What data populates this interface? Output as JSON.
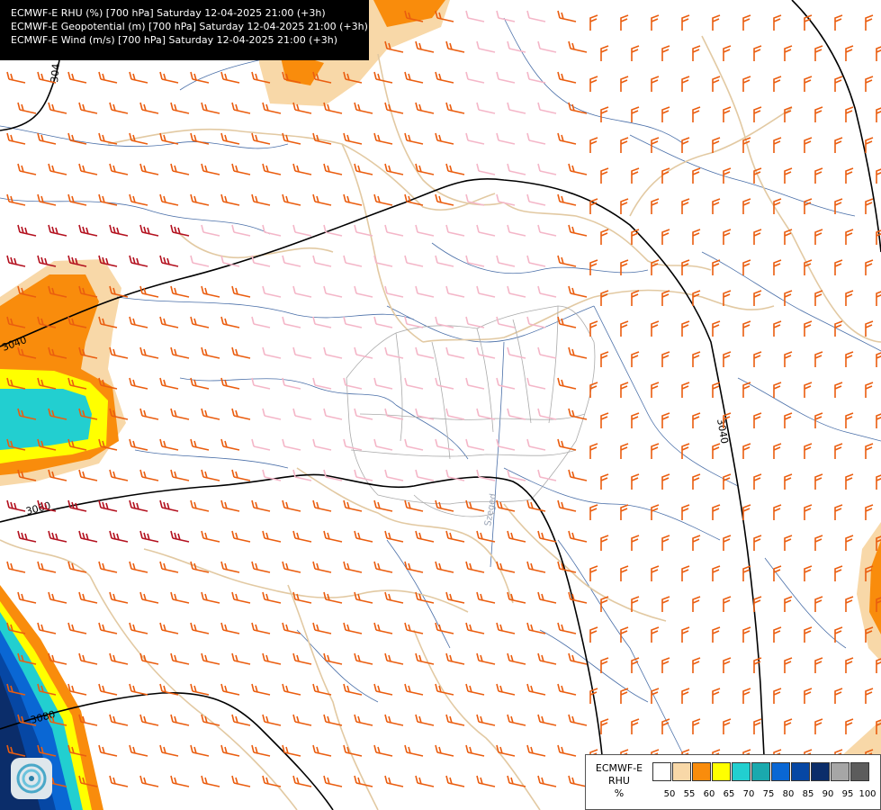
{
  "header": {
    "line1": "ECMWF-E RHU (%) [700 hPa] Saturday 12-04-2025 21:00 (+3h)",
    "line2": "ECMWF-E Geopotential (m) [700 hPa] Saturday 12-04-2025 21:00 (+3h)",
    "line3": "ECMWF-E Wind (m/s) [700 hPa] Saturday 12-04-2025 21:00 (+3h)"
  },
  "contours": [
    {
      "label": "3040"
    },
    {
      "label": "3060"
    },
    {
      "label": "3080"
    },
    {
      "label": "3040"
    },
    {
      "label": "304"
    }
  ],
  "city_label": "Szeged",
  "legend": {
    "title_line1": "ECMWF-E",
    "title_line2": "RHU",
    "unit": "%",
    "colors": [
      "#ffffff",
      "#f8d8a8",
      "#f98c0c",
      "#ffff00",
      "#22cfd0",
      "#1aa9ae",
      "#0a67d4",
      "#0647a4",
      "#0b2d6a",
      "#a6a6a6",
      "#5c5c5c"
    ],
    "ticks": [
      "50",
      "55",
      "60",
      "65",
      "70",
      "75",
      "80",
      "85",
      "90",
      "95",
      "100"
    ]
  },
  "logo_icon": "ecmwf-logo-icon",
  "wind_colors": {
    "light": "#f4b6c8",
    "moderate": "#ea5d0f",
    "strong": "#b3101e"
  }
}
